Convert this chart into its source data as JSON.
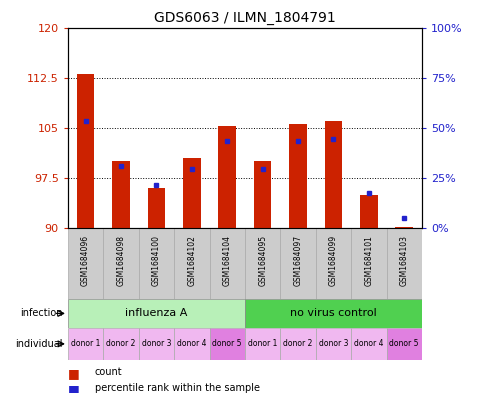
{
  "title": "GDS6063 / ILMN_1804791",
  "samples": [
    "GSM1684096",
    "GSM1684098",
    "GSM1684100",
    "GSM1684102",
    "GSM1684104",
    "GSM1684095",
    "GSM1684097",
    "GSM1684099",
    "GSM1684101",
    "GSM1684103"
  ],
  "red_values": [
    113.0,
    100.0,
    96.0,
    100.5,
    105.3,
    100.0,
    105.5,
    106.0,
    95.0,
    90.2
  ],
  "blue_values": [
    106.0,
    99.2,
    96.5,
    98.8,
    103.0,
    98.8,
    103.0,
    103.3,
    95.2,
    91.5
  ],
  "ylim": [
    90,
    120
  ],
  "yticks_left": [
    90,
    97.5,
    105,
    112.5,
    120
  ],
  "yticks_right_vals": [
    0,
    25,
    50,
    75,
    100
  ],
  "infection_groups": [
    {
      "label": "influenza A",
      "start": 0,
      "end": 5,
      "color": "#b8f0b8"
    },
    {
      "label": "no virus control",
      "start": 5,
      "end": 10,
      "color": "#50d050"
    }
  ],
  "individual_labels": [
    "donor 1",
    "donor 2",
    "donor 3",
    "donor 4",
    "donor 5",
    "donor 1",
    "donor 2",
    "donor 3",
    "donor 4",
    "donor 5"
  ],
  "individual_colors": [
    "#f0b8f0",
    "#f0b8f0",
    "#f0b8f0",
    "#f0b8f0",
    "#e080e0",
    "#f0b8f0",
    "#f0b8f0",
    "#f0b8f0",
    "#f0b8f0",
    "#e080e0"
  ],
  "bar_color": "#cc2200",
  "blue_color": "#2222cc",
  "bar_width": 0.5,
  "left_tick_color": "#cc2200",
  "right_tick_color": "#2222cc",
  "plot_bg": "#ffffff"
}
